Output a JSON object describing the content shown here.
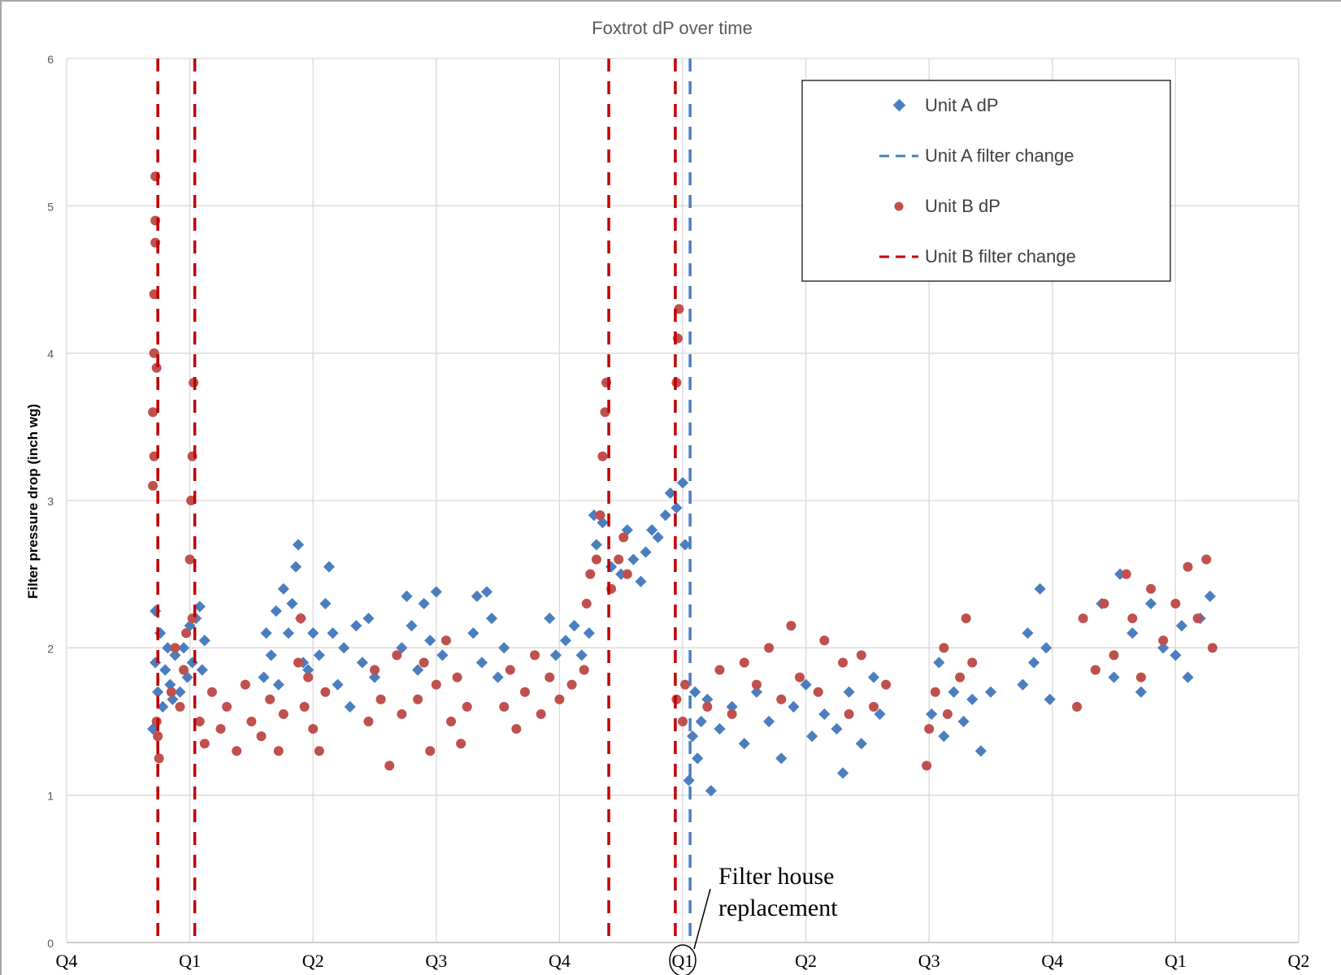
{
  "chart_data": {
    "type": "scatter",
    "title": "Foxtrot dP over time",
    "xlabel": "",
    "ylabel": "Filter pressure drop (inch wg)",
    "x_tick_labels": [
      "Q4",
      "Q1",
      "Q2",
      "Q3",
      "Q4",
      "Q1",
      "Q2",
      "Q3",
      "Q4",
      "Q1",
      "Q2"
    ],
    "xlim": [
      0,
      10
    ],
    "ylim": [
      0,
      6
    ],
    "y_ticks": [
      0,
      1,
      2,
      3,
      4,
      5,
      6
    ],
    "grid": true,
    "legend_position": "top-right",
    "highlighted_tick": "Q1",
    "annotation": {
      "line1": "Filter house replacement",
      "text_lines": [
        "Filter house",
        "replacement"
      ]
    },
    "series": [
      {
        "name": "Unit A dP",
        "marker": "diamond",
        "color": "#4a7ebf",
        "points": [
          [
            0.7,
            1.45
          ],
          [
            0.72,
            2.25
          ],
          [
            0.72,
            1.9
          ],
          [
            0.74,
            1.7
          ],
          [
            0.76,
            2.1
          ],
          [
            0.78,
            1.6
          ],
          [
            0.8,
            1.85
          ],
          [
            0.82,
            2.0
          ],
          [
            0.84,
            1.75
          ],
          [
            0.86,
            1.65
          ],
          [
            0.88,
            1.95
          ],
          [
            0.92,
            1.7
          ],
          [
            0.95,
            2.0
          ],
          [
            0.98,
            1.8
          ],
          [
            1.0,
            2.15
          ],
          [
            1.02,
            1.9
          ],
          [
            1.05,
            2.2
          ],
          [
            1.08,
            2.28
          ],
          [
            1.1,
            1.85
          ],
          [
            1.12,
            2.05
          ],
          [
            1.6,
            1.8
          ],
          [
            1.62,
            2.1
          ],
          [
            1.66,
            1.95
          ],
          [
            1.7,
            2.25
          ],
          [
            1.72,
            1.75
          ],
          [
            1.76,
            2.4
          ],
          [
            1.8,
            2.1
          ],
          [
            1.83,
            2.3
          ],
          [
            1.86,
            2.55
          ],
          [
            1.88,
            2.7
          ],
          [
            1.9,
            2.2
          ],
          [
            1.92,
            1.9
          ],
          [
            1.96,
            1.85
          ],
          [
            2.0,
            2.1
          ],
          [
            2.05,
            1.95
          ],
          [
            2.1,
            2.3
          ],
          [
            2.13,
            2.55
          ],
          [
            2.16,
            2.1
          ],
          [
            2.2,
            1.75
          ],
          [
            2.25,
            2.0
          ],
          [
            2.3,
            1.6
          ],
          [
            2.35,
            2.15
          ],
          [
            2.4,
            1.9
          ],
          [
            2.45,
            2.2
          ],
          [
            2.5,
            1.8
          ],
          [
            2.72,
            2.0
          ],
          [
            2.76,
            2.35
          ],
          [
            2.8,
            2.15
          ],
          [
            2.85,
            1.85
          ],
          [
            2.9,
            2.3
          ],
          [
            2.95,
            2.05
          ],
          [
            3.0,
            2.38
          ],
          [
            3.05,
            1.95
          ],
          [
            3.3,
            2.1
          ],
          [
            3.33,
            2.35
          ],
          [
            3.37,
            1.9
          ],
          [
            3.41,
            2.38
          ],
          [
            3.45,
            2.2
          ],
          [
            3.5,
            1.8
          ],
          [
            3.55,
            2.0
          ],
          [
            3.92,
            2.2
          ],
          [
            3.97,
            1.95
          ],
          [
            4.05,
            2.05
          ],
          [
            4.12,
            2.15
          ],
          [
            4.18,
            1.95
          ],
          [
            4.24,
            2.1
          ],
          [
            4.28,
            2.9
          ],
          [
            4.3,
            2.7
          ],
          [
            4.35,
            2.85
          ],
          [
            4.42,
            2.55
          ],
          [
            4.5,
            2.5
          ],
          [
            4.55,
            2.8
          ],
          [
            4.6,
            2.6
          ],
          [
            4.66,
            2.45
          ],
          [
            4.7,
            2.65
          ],
          [
            4.75,
            2.8
          ],
          [
            4.8,
            2.75
          ],
          [
            4.86,
            2.9
          ],
          [
            4.9,
            3.05
          ],
          [
            4.95,
            2.95
          ],
          [
            5.0,
            3.12
          ],
          [
            5.02,
            2.7
          ],
          [
            5.05,
            1.1
          ],
          [
            5.08,
            1.4
          ],
          [
            5.1,
            1.7
          ],
          [
            5.12,
            1.25
          ],
          [
            5.15,
            1.5
          ],
          [
            5.2,
            1.65
          ],
          [
            5.23,
            1.03
          ],
          [
            5.3,
            1.45
          ],
          [
            5.4,
            1.6
          ],
          [
            5.5,
            1.35
          ],
          [
            5.6,
            1.7
          ],
          [
            5.7,
            1.5
          ],
          [
            5.8,
            1.25
          ],
          [
            5.9,
            1.6
          ],
          [
            6.0,
            1.75
          ],
          [
            6.05,
            1.4
          ],
          [
            6.15,
            1.55
          ],
          [
            6.25,
            1.45
          ],
          [
            6.3,
            1.15
          ],
          [
            6.35,
            1.7
          ],
          [
            6.45,
            1.35
          ],
          [
            6.55,
            1.8
          ],
          [
            6.6,
            1.55
          ],
          [
            7.02,
            1.55
          ],
          [
            7.08,
            1.9
          ],
          [
            7.12,
            1.4
          ],
          [
            7.2,
            1.7
          ],
          [
            7.28,
            1.5
          ],
          [
            7.35,
            1.65
          ],
          [
            7.42,
            1.3
          ],
          [
            7.5,
            1.7
          ],
          [
            7.76,
            1.75
          ],
          [
            7.8,
            2.1
          ],
          [
            7.85,
            1.9
          ],
          [
            7.9,
            2.4
          ],
          [
            7.95,
            2.0
          ],
          [
            7.98,
            1.65
          ],
          [
            8.4,
            2.3
          ],
          [
            8.5,
            1.8
          ],
          [
            8.55,
            2.5
          ],
          [
            8.65,
            2.1
          ],
          [
            8.72,
            1.7
          ],
          [
            8.8,
            2.3
          ],
          [
            8.9,
            2.0
          ],
          [
            9.0,
            1.95
          ],
          [
            9.05,
            2.15
          ],
          [
            9.1,
            1.8
          ],
          [
            9.2,
            2.2
          ],
          [
            9.28,
            2.35
          ]
        ]
      },
      {
        "name": "Unit A filter change",
        "line": "dashed",
        "color": "#4a7ebf",
        "x": [
          5.06
        ]
      },
      {
        "name": "Unit B dP",
        "marker": "circle",
        "color": "#c0504d",
        "points": [
          [
            0.7,
            3.1
          ],
          [
            0.7,
            3.6
          ],
          [
            0.71,
            4.0
          ],
          [
            0.71,
            4.4
          ],
          [
            0.72,
            4.75
          ],
          [
            0.72,
            5.2
          ],
          [
            0.72,
            4.9
          ],
          [
            0.71,
            3.3
          ],
          [
            0.73,
            3.9
          ],
          [
            0.74,
            1.4
          ],
          [
            0.75,
            1.25
          ],
          [
            0.73,
            1.5
          ],
          [
            0.85,
            1.7
          ],
          [
            0.88,
            2.0
          ],
          [
            0.92,
            1.6
          ],
          [
            0.95,
            1.85
          ],
          [
            0.97,
            2.1
          ],
          [
            1.0,
            2.6
          ],
          [
            1.01,
            3.0
          ],
          [
            1.02,
            3.3
          ],
          [
            1.03,
            3.8
          ],
          [
            1.02,
            2.2
          ],
          [
            1.08,
            1.5
          ],
          [
            1.12,
            1.35
          ],
          [
            1.18,
            1.7
          ],
          [
            1.25,
            1.45
          ],
          [
            1.3,
            1.6
          ],
          [
            1.38,
            1.3
          ],
          [
            1.45,
            1.75
          ],
          [
            1.5,
            1.5
          ],
          [
            1.58,
            1.4
          ],
          [
            1.65,
            1.65
          ],
          [
            1.72,
            1.3
          ],
          [
            1.76,
            1.55
          ],
          [
            1.88,
            1.9
          ],
          [
            1.9,
            2.2
          ],
          [
            1.93,
            1.6
          ],
          [
            1.96,
            1.8
          ],
          [
            2.0,
            1.45
          ],
          [
            2.05,
            1.3
          ],
          [
            2.1,
            1.7
          ],
          [
            2.45,
            1.5
          ],
          [
            2.5,
            1.85
          ],
          [
            2.55,
            1.65
          ],
          [
            2.62,
            1.2
          ],
          [
            2.68,
            1.95
          ],
          [
            2.72,
            1.55
          ],
          [
            2.85,
            1.65
          ],
          [
            2.9,
            1.9
          ],
          [
            2.95,
            1.3
          ],
          [
            3.0,
            1.75
          ],
          [
            3.08,
            2.05
          ],
          [
            3.12,
            1.5
          ],
          [
            3.17,
            1.8
          ],
          [
            3.2,
            1.35
          ],
          [
            3.25,
            1.6
          ],
          [
            3.55,
            1.6
          ],
          [
            3.6,
            1.85
          ],
          [
            3.65,
            1.45
          ],
          [
            3.72,
            1.7
          ],
          [
            3.8,
            1.95
          ],
          [
            3.85,
            1.55
          ],
          [
            3.92,
            1.8
          ],
          [
            4.0,
            1.65
          ],
          [
            4.1,
            1.75
          ],
          [
            4.2,
            1.85
          ],
          [
            4.22,
            2.3
          ],
          [
            4.25,
            2.5
          ],
          [
            4.3,
            2.6
          ],
          [
            4.33,
            2.9
          ],
          [
            4.35,
            3.3
          ],
          [
            4.37,
            3.6
          ],
          [
            4.38,
            3.8
          ],
          [
            4.42,
            2.4
          ],
          [
            4.48,
            2.6
          ],
          [
            4.52,
            2.75
          ],
          [
            4.55,
            2.5
          ],
          [
            4.95,
            3.8
          ],
          [
            4.96,
            4.1
          ],
          [
            4.97,
            4.3
          ],
          [
            4.95,
            1.65
          ],
          [
            5.0,
            1.5
          ],
          [
            5.02,
            1.75
          ],
          [
            5.2,
            1.6
          ],
          [
            5.3,
            1.85
          ],
          [
            5.4,
            1.55
          ],
          [
            5.5,
            1.9
          ],
          [
            5.6,
            1.75
          ],
          [
            5.7,
            2.0
          ],
          [
            5.8,
            1.65
          ],
          [
            5.88,
            2.15
          ],
          [
            5.95,
            1.8
          ],
          [
            6.1,
            1.7
          ],
          [
            6.15,
            2.05
          ],
          [
            6.3,
            1.9
          ],
          [
            6.35,
            1.55
          ],
          [
            6.45,
            1.95
          ],
          [
            6.55,
            1.6
          ],
          [
            6.65,
            1.75
          ],
          [
            6.98,
            1.2
          ],
          [
            7.0,
            1.45
          ],
          [
            7.05,
            1.7
          ],
          [
            7.12,
            2.0
          ],
          [
            7.15,
            1.55
          ],
          [
            7.25,
            1.8
          ],
          [
            7.3,
            2.2
          ],
          [
            7.35,
            1.9
          ],
          [
            8.2,
            1.6
          ],
          [
            8.25,
            2.2
          ],
          [
            8.35,
            1.85
          ],
          [
            8.42,
            2.3
          ],
          [
            8.5,
            1.95
          ],
          [
            8.6,
            2.5
          ],
          [
            8.65,
            2.2
          ],
          [
            8.72,
            1.8
          ],
          [
            8.8,
            2.4
          ],
          [
            8.9,
            2.05
          ],
          [
            9.0,
            2.3
          ],
          [
            9.1,
            2.55
          ],
          [
            9.18,
            2.2
          ],
          [
            9.25,
            2.6
          ],
          [
            9.3,
            2.0
          ]
        ]
      },
      {
        "name": "Unit B filter change",
        "line": "dashed",
        "color": "#c00000",
        "x": [
          0.74,
          1.04,
          4.4,
          4.94
        ]
      }
    ]
  }
}
